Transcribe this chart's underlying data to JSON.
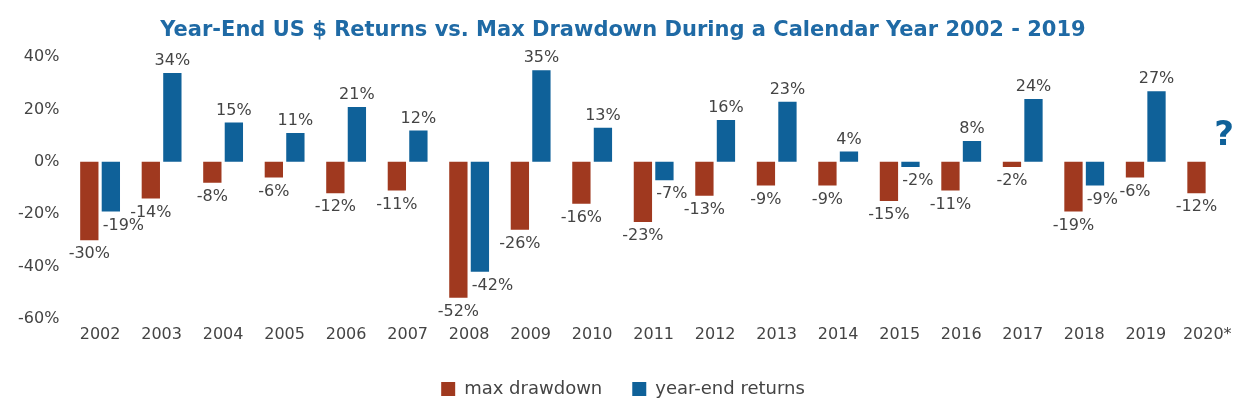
{
  "chart_data": {
    "type": "bar",
    "title": "Year-End US $ Returns vs. Max Drawdown During a Calendar Year 2002 - 2019",
    "categories": [
      "2002",
      "2003",
      "2004",
      "2005",
      "2006",
      "2007",
      "2008",
      "2009",
      "2010",
      "2011",
      "2012",
      "2013",
      "2014",
      "2015",
      "2016",
      "2017",
      "2018",
      "2019",
      "2020*"
    ],
    "series": [
      {
        "name": "max drawdown",
        "color": "#a0391f",
        "values": [
          -30,
          -14,
          -8,
          -6,
          -12,
          -11,
          -52,
          -26,
          -16,
          -23,
          -13,
          -9,
          -9,
          -15,
          -11,
          -2,
          -19,
          -6,
          -12
        ],
        "value_labels": [
          "-30%",
          "-14%",
          "-8%",
          "-6%",
          "-12%",
          "-11%",
          "-52%",
          "-26%",
          "-16%",
          "-23%",
          "-13%",
          "-9%",
          "-9%",
          "-15%",
          "-11%",
          "-2%",
          "-19%",
          "-6%",
          "-12%"
        ]
      },
      {
        "name": "year-end returns",
        "color": "#0f6199",
        "values": [
          -19,
          34,
          15,
          11,
          21,
          12,
          -42,
          35,
          13,
          -7,
          16,
          23,
          4,
          -2,
          8,
          24,
          -9,
          27,
          null
        ],
        "value_labels": [
          "-19%",
          "34%",
          "15%",
          "11%",
          "21%",
          "12%",
          "-42%",
          "35%",
          "13%",
          "-7%",
          "16%",
          "23%",
          "4%",
          "-2%",
          "8%",
          "24%",
          "-9%",
          "27%",
          null
        ]
      }
    ],
    "ylim": [
      -60,
      40
    ],
    "yticks": [
      {
        "value": -60,
        "label": "-60%"
      },
      {
        "value": -40,
        "label": "-40%"
      },
      {
        "value": -20,
        "label": "-20%"
      },
      {
        "value": 0,
        "label": "0%"
      },
      {
        "value": 20,
        "label": "20%"
      },
      {
        "value": 40,
        "label": "40%"
      }
    ],
    "grid": false,
    "legend": "bottom",
    "annotations": [
      "?"
    ]
  }
}
